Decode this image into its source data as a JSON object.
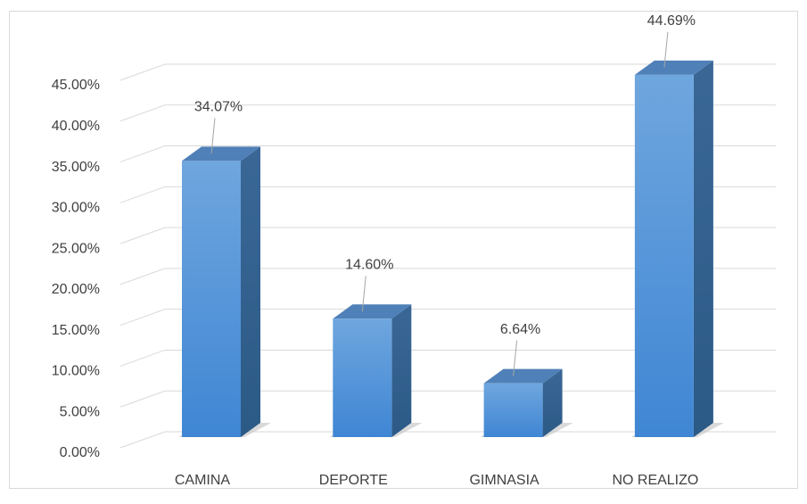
{
  "chart_data": {
    "type": "bar3d",
    "categories": [
      "CAMINA",
      "DEPORTE",
      "GIMNASIA",
      "NO REALIZO"
    ],
    "values": [
      34.07,
      14.6,
      6.64,
      44.69
    ],
    "value_labels": [
      "34.07%",
      "14.60%",
      "6.64%",
      "44.69%"
    ],
    "color": "#5b9bd5",
    "ylim": [
      0,
      45
    ],
    "yticks": [
      {
        "value": 0,
        "label": "0.00%"
      },
      {
        "value": 5,
        "label": "5.00%"
      },
      {
        "value": 10,
        "label": "10.00%"
      },
      {
        "value": 15,
        "label": "15.00%"
      },
      {
        "value": 20,
        "label": "20.00%"
      },
      {
        "value": 25,
        "label": "25.00%"
      },
      {
        "value": 30,
        "label": "30.00%"
      },
      {
        "value": 35,
        "label": "35.00%"
      },
      {
        "value": 40,
        "label": "40.00%"
      },
      {
        "value": 45,
        "label": "45.00%"
      }
    ],
    "grid": true
  }
}
